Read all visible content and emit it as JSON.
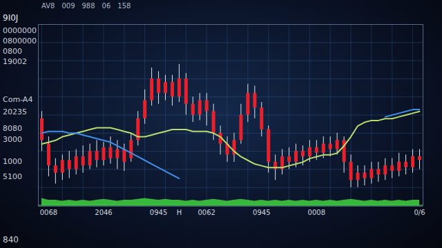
{
  "chart_data": {
    "type": "candlestick",
    "title": "9I0J",
    "top_labels": [
      "AV8",
      "009",
      "988",
      "06",
      "158"
    ],
    "side_labels": [
      "0000000",
      "0800000",
      "0800",
      "19002",
      "Com-A4",
      "20235",
      "8080",
      "3000",
      "1000",
      "5100"
    ],
    "footer_label": "840",
    "categories": [
      null,
      "0068",
      null,
      null,
      null,
      null,
      null,
      null,
      null,
      "2046",
      null,
      null,
      null,
      null,
      null,
      null,
      null,
      "0945",
      null,
      null,
      "H",
      null,
      null,
      null,
      "0062",
      null,
      null,
      null,
      null,
      null,
      null,
      null,
      "0945",
      null,
      null,
      null,
      null,
      null,
      null,
      null,
      "0008",
      null,
      null,
      null,
      null,
      null,
      null,
      null,
      null,
      null,
      null,
      null,
      null,
      null,
      null,
      "0/6"
    ],
    "open": [
      48,
      34,
      22,
      18,
      25,
      20,
      27,
      22,
      30,
      25,
      32,
      26,
      31,
      26,
      36,
      48,
      58,
      70,
      62,
      68,
      60,
      70,
      56,
      50,
      58,
      52,
      40,
      34,
      28,
      36,
      50,
      62,
      54,
      42,
      24,
      20,
      27,
      24,
      30,
      27,
      32,
      29,
      34,
      31,
      36,
      24,
      14,
      18,
      15,
      20,
      17,
      22,
      19,
      24,
      21,
      27
    ],
    "close": [
      36,
      22,
      18,
      25,
      20,
      27,
      22,
      30,
      25,
      32,
      26,
      31,
      24,
      36,
      48,
      58,
      70,
      62,
      68,
      60,
      70,
      56,
      50,
      58,
      52,
      40,
      34,
      28,
      36,
      50,
      62,
      54,
      42,
      24,
      20,
      27,
      24,
      30,
      27,
      32,
      29,
      34,
      31,
      36,
      24,
      14,
      18,
      15,
      20,
      17,
      22,
      19,
      24,
      21,
      27,
      25
    ],
    "high": [
      52,
      38,
      26,
      28,
      30,
      31,
      33,
      34,
      36,
      35,
      38,
      36,
      34,
      40,
      52,
      64,
      76,
      74,
      72,
      72,
      78,
      73,
      60,
      62,
      62,
      56,
      44,
      38,
      40,
      56,
      67,
      66,
      57,
      44,
      28,
      31,
      32,
      34,
      33,
      36,
      36,
      38,
      38,
      40,
      38,
      28,
      22,
      22,
      24,
      24,
      26,
      26,
      29,
      28,
      31,
      31
    ],
    "low": [
      30,
      16,
      12,
      14,
      15,
      17,
      18,
      20,
      21,
      22,
      23,
      20,
      19,
      24,
      33,
      45,
      55,
      56,
      58,
      55,
      57,
      50,
      46,
      47,
      44,
      36,
      28,
      24,
      24,
      34,
      46,
      48,
      38,
      18,
      14,
      17,
      20,
      21,
      22,
      24,
      25,
      26,
      27,
      28,
      18,
      10,
      10,
      11,
      12,
      13,
      14,
      15,
      16,
      17,
      18,
      20
    ],
    "volume": [
      4,
      3,
      3,
      2.5,
      3,
      2.5,
      3,
      2.5,
      3,
      3.5,
      3,
      2.5,
      3,
      3,
      3.5,
      4,
      3.5,
      3,
      3.5,
      3,
      3,
      2.5,
      3,
      2.5,
      3,
      3.5,
      3,
      2.5,
      3,
      3.5,
      3,
      2.5,
      3,
      2.5,
      3,
      2.5,
      3,
      2.5,
      3,
      2.5,
      3,
      2.5,
      3,
      2.5,
      3,
      3.5,
      3,
      2.5,
      3,
      2.5,
      3,
      2.5,
      3,
      2.5,
      3,
      3
    ],
    "color": "#e8222c",
    "series": [
      {
        "type": "line",
        "color": "#b9dc6e",
        "values": [
          34,
          35,
          36,
          38,
          39,
          40,
          41,
          42,
          43,
          43,
          43,
          42,
          41,
          40,
          38,
          38,
          39,
          40,
          41,
          42,
          42,
          42,
          41,
          41,
          41,
          40,
          38,
          34,
          30,
          27,
          25,
          23,
          22,
          21,
          21,
          21,
          22,
          23,
          24,
          26,
          27,
          28,
          28,
          29,
          33,
          38,
          44,
          46,
          47,
          47,
          48,
          48,
          49,
          50,
          51,
          52
        ]
      },
      {
        "type": "line",
        "color": "#3f8fe6",
        "values": [
          40,
          41,
          41,
          41,
          40,
          40,
          39,
          38,
          37,
          36,
          35,
          33,
          31,
          29,
          27,
          25,
          23,
          21,
          19,
          17,
          15,
          null,
          null,
          null,
          null,
          null,
          null,
          null,
          null,
          null,
          null,
          null,
          null,
          null,
          null,
          null,
          null,
          null,
          null,
          null,
          null,
          null,
          null,
          null,
          null,
          null,
          null,
          null,
          null,
          null,
          49,
          50,
          51,
          52,
          53,
          53
        ]
      }
    ],
    "ylim": [
      0,
      100
    ],
    "yticks": [
      0,
      10,
      20,
      30,
      40,
      50,
      60,
      70,
      80,
      90,
      100
    ],
    "grid": true,
    "tick_labels": "x"
  }
}
